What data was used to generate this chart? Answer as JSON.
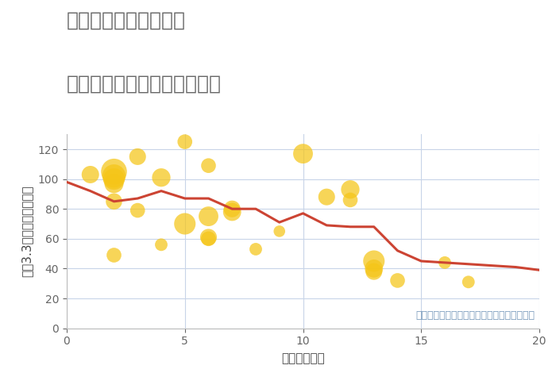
{
  "title_line1": "埼玉県飯能市上赤工の",
  "title_line2": "駅距離別中古マンション価格",
  "xlabel": "駅距離（分）",
  "ylabel": "坪（3.3㎡）単価（万円）",
  "annotation": "円の大きさは、取引のあった物件面積を示す",
  "xlim": [
    0,
    20
  ],
  "ylim": [
    0,
    130
  ],
  "yticks": [
    0,
    20,
    40,
    60,
    80,
    100,
    120
  ],
  "xticks": [
    0,
    5,
    10,
    15,
    20
  ],
  "line_x": [
    0,
    1,
    2,
    3,
    4,
    5,
    6,
    7,
    8,
    9,
    10,
    11,
    12,
    13,
    14,
    15,
    16,
    17,
    18,
    19,
    20
  ],
  "line_y": [
    98,
    92,
    85,
    87,
    92,
    87,
    87,
    80,
    80,
    71,
    77,
    69,
    68,
    68,
    52,
    45,
    44,
    43,
    42,
    41,
    39
  ],
  "line_color": "#cc4433",
  "line_width": 2.2,
  "scatter_x": [
    1,
    2,
    2,
    2,
    2,
    2,
    2,
    3,
    3,
    4,
    4,
    5,
    5,
    6,
    6,
    6,
    6,
    7,
    7,
    8,
    9,
    10,
    11,
    12,
    12,
    13,
    13,
    13,
    14,
    16,
    17
  ],
  "scatter_y": [
    103,
    105,
    102,
    100,
    97,
    85,
    49,
    115,
    79,
    101,
    56,
    125,
    70,
    109,
    75,
    61,
    60,
    78,
    80,
    53,
    65,
    117,
    88,
    93,
    86,
    45,
    40,
    38,
    32,
    44,
    31
  ],
  "scatter_sizes": [
    250,
    550,
    450,
    380,
    300,
    220,
    180,
    230,
    180,
    280,
    130,
    180,
    380,
    180,
    320,
    230,
    180,
    270,
    230,
    130,
    110,
    320,
    230,
    280,
    180,
    380,
    270,
    230,
    180,
    130,
    130
  ],
  "scatter_color": "#f5c518",
  "scatter_alpha": 0.72,
  "background_color": "#ffffff",
  "grid_color": "#c8d4e8",
  "title_color": "#666666",
  "annotation_color": "#7799bb",
  "title_fontsize": 18,
  "axis_fontsize": 11,
  "annotation_fontsize": 9
}
